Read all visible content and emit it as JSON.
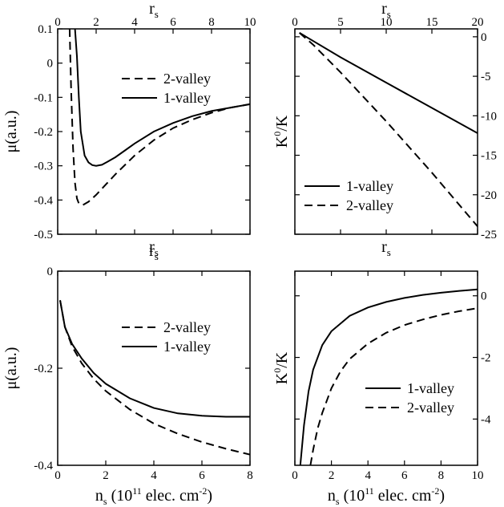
{
  "chart_data": [
    {
      "type": "line",
      "xlabel": "",
      "ylabel": "μ(a.u.)",
      "top_label": "r",
      "top_sub": "s",
      "bottom_label": "r",
      "bottom_sub": "s",
      "xlim": [
        0,
        10
      ],
      "ylim": [
        -0.5,
        0.1
      ],
      "xticks": [
        "0",
        "2",
        "4",
        "6",
        "8",
        "10"
      ],
      "yticks": [
        "0.1",
        "0",
        "-0.1",
        "-0.2",
        "-0.3",
        "-0.4",
        "-0.5"
      ],
      "legend_position": "upper-right",
      "legend": [
        "2-valley",
        "1-valley"
      ],
      "series": [
        {
          "name": "2-valley",
          "dash": "dashed",
          "x": [
            0.62,
            0.7,
            0.8,
            0.9,
            1.0,
            1.1,
            1.3,
            1.6,
            2.0,
            2.5,
            3.0,
            4.0,
            5.0,
            6.0,
            7.0,
            8.0,
            9.0,
            10.0
          ],
          "y": [
            0.1,
            -0.08,
            -0.25,
            -0.35,
            -0.395,
            -0.41,
            -0.415,
            -0.405,
            -0.385,
            -0.355,
            -0.325,
            -0.27,
            -0.225,
            -0.19,
            -0.165,
            -0.145,
            -0.13,
            -0.12
          ]
        },
        {
          "name": "1-valley",
          "dash": "solid",
          "x": [
            0.9,
            1.0,
            1.1,
            1.2,
            1.4,
            1.6,
            1.8,
            2.0,
            2.3,
            2.6,
            3.0,
            3.5,
            4.0,
            5.0,
            6.0,
            7.0,
            8.0,
            9.0,
            10.0
          ],
          "y": [
            0.1,
            0.02,
            -0.1,
            -0.2,
            -0.27,
            -0.29,
            -0.298,
            -0.3,
            -0.297,
            -0.288,
            -0.275,
            -0.255,
            -0.235,
            -0.2,
            -0.175,
            -0.155,
            -0.14,
            -0.13,
            -0.12
          ]
        }
      ]
    },
    {
      "type": "line",
      "xlabel": "",
      "ylabel": "K0/K",
      "ylabel_main": "K",
      "ylabel_sup": "0",
      "ylabel_tail": "/K",
      "top_label": "r",
      "top_sub": "s",
      "bottom_label": "r",
      "bottom_sub": "s",
      "xlim": [
        0,
        20
      ],
      "ylim": [
        -25,
        1
      ],
      "xticks": [
        "0",
        "5",
        "10",
        "15",
        "20"
      ],
      "yticks": [
        "0",
        "-5",
        "-10",
        "-15",
        "-20",
        "-25"
      ],
      "legend_position": "lower-left",
      "legend": [
        "1-valley",
        "2-valley"
      ],
      "series": [
        {
          "name": "1-valley",
          "dash": "solid",
          "x": [
            0.5,
            5,
            10,
            15,
            20
          ],
          "y": [
            0.5,
            -2.6,
            -5.8,
            -9.0,
            -12.2
          ]
        },
        {
          "name": "2-valley",
          "dash": "dashed",
          "x": [
            0.5,
            2,
            5,
            10,
            15,
            20
          ],
          "y": [
            0.5,
            -1.0,
            -4.5,
            -10.7,
            -17.2,
            -24.0
          ]
        }
      ]
    },
    {
      "type": "line",
      "xlabel": "n",
      "xlabel_sub": "s",
      "xlabel_tail": " (10",
      "xlabel_sup": "11",
      "xlabel_tail2": " elec. cm",
      "xlabel_sup2": "-2",
      "xlabel_end": ")",
      "ylabel": "μ(a.u.)",
      "top_label": "r",
      "top_sub": "s",
      "xlim": [
        0,
        8
      ],
      "ylim": [
        -0.4,
        0
      ],
      "xticks": [
        "0",
        "2",
        "4",
        "6",
        "8"
      ],
      "yticks": [
        "0",
        "-0.2",
        "-0.4"
      ],
      "legend_position": "upper-right",
      "legend": [
        "2-valley",
        "1-valley"
      ],
      "series": [
        {
          "name": "2-valley",
          "dash": "dashed",
          "x": [
            0.1,
            0.3,
            0.6,
            1.0,
            1.5,
            2.0,
            3.0,
            4.0,
            5.0,
            6.0,
            7.0,
            8.0
          ],
          "y": [
            -0.06,
            -0.115,
            -0.155,
            -0.19,
            -0.222,
            -0.247,
            -0.285,
            -0.314,
            -0.335,
            -0.352,
            -0.366,
            -0.378
          ]
        },
        {
          "name": "1-valley",
          "dash": "solid",
          "x": [
            0.1,
            0.3,
            0.6,
            1.0,
            1.5,
            2.0,
            3.0,
            4.0,
            5.0,
            6.0,
            7.0,
            8.0
          ],
          "y": [
            -0.06,
            -0.115,
            -0.15,
            -0.18,
            -0.21,
            -0.232,
            -0.262,
            -0.282,
            -0.293,
            -0.298,
            -0.3,
            -0.3
          ]
        }
      ]
    },
    {
      "type": "line",
      "xlabel": "n",
      "xlabel_sub": "s",
      "xlabel_tail": " (10",
      "xlabel_sup": "11",
      "xlabel_tail2": " elec. cm",
      "xlabel_sup2": "-2",
      "xlabel_end": ")",
      "ylabel": "K0/K",
      "ylabel_main": "K",
      "ylabel_sup": "0",
      "ylabel_tail": "/K",
      "xlim": [
        0,
        10
      ],
      "ylim": [
        -5.5,
        0.8
      ],
      "xticks": [
        "0",
        "2",
        "4",
        "6",
        "8",
        "10"
      ],
      "yticks": [
        "0",
        "-2",
        "-4"
      ],
      "legend_position": "lower-right",
      "legend": [
        "1-valley",
        "2-valley"
      ],
      "series": [
        {
          "name": "1-valley",
          "dash": "solid",
          "x": [
            0.3,
            0.5,
            0.75,
            1.0,
            1.5,
            2.0,
            3.0,
            4.0,
            5.0,
            6.0,
            7.0,
            8.0,
            9.0,
            10.0
          ],
          "y": [
            -5.5,
            -4.2,
            -3.1,
            -2.4,
            -1.6,
            -1.15,
            -0.65,
            -0.38,
            -0.2,
            -0.07,
            0.03,
            0.1,
            0.16,
            0.21
          ]
        },
        {
          "name": "2-valley",
          "dash": "dashed",
          "x": [
            0.85,
            1.0,
            1.25,
            1.5,
            2.0,
            2.5,
            3.0,
            4.0,
            5.0,
            6.0,
            7.0,
            8.0,
            9.0,
            10.0
          ],
          "y": [
            -5.5,
            -5.0,
            -4.3,
            -3.8,
            -3.0,
            -2.45,
            -2.05,
            -1.55,
            -1.2,
            -0.95,
            -0.77,
            -0.62,
            -0.5,
            -0.4
          ]
        }
      ]
    }
  ]
}
